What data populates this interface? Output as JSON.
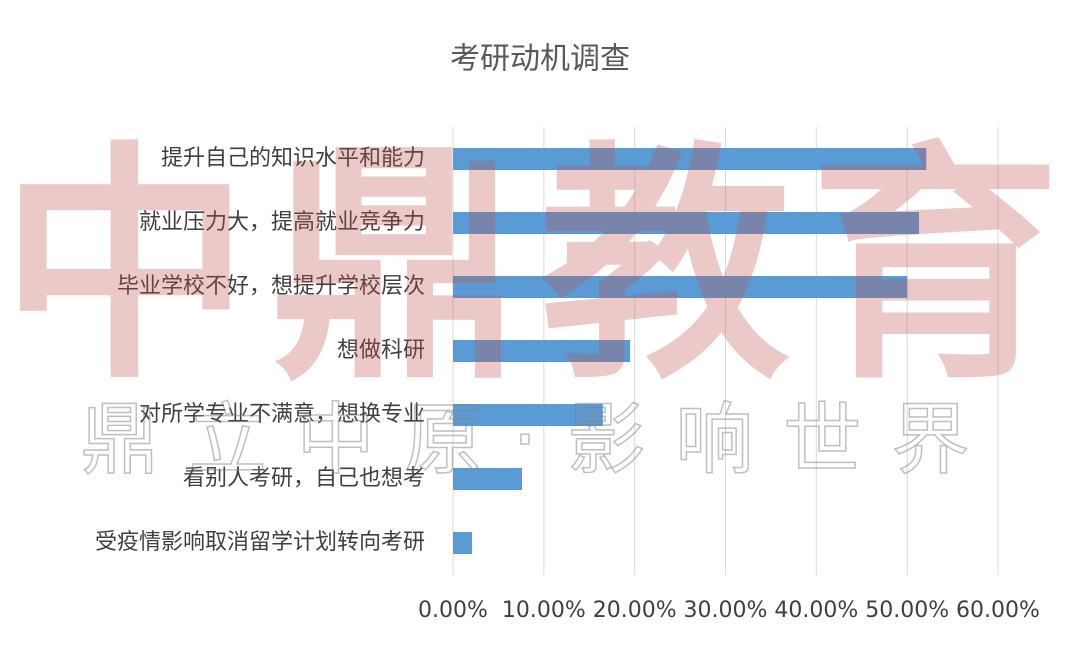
{
  "chart_data": {
    "type": "hbar",
    "title": "考研动机调查",
    "categories": [
      "提升自己的知识水平和能力",
      "就业压力大，提高就业竞争力",
      "毕业学校不好，想提升学校层次",
      "想做科研",
      "对所学专业不满意，想换专业",
      "看别人考研，自己也想考",
      "受疫情影响取消留学计划转向考研"
    ],
    "values": [
      52.1,
      51.3,
      50.0,
      19.5,
      16.5,
      7.6,
      2.1
    ],
    "color": "#5b9bd5",
    "xlim": [
      0,
      60
    ],
    "xticks": [
      {
        "value": 0,
        "label": "0.00%"
      },
      {
        "value": 10,
        "label": "10.00%"
      },
      {
        "value": 20,
        "label": "20.00%"
      },
      {
        "value": 30,
        "label": "30.00%"
      },
      {
        "value": 40,
        "label": "40.00%"
      },
      {
        "value": 50,
        "label": "50.00%"
      },
      {
        "value": 60,
        "label": "60.00%"
      }
    ],
    "grid": true
  },
  "watermark": {
    "main": "中鼎教育",
    "slogan": "鼎立中原·影响世界"
  }
}
